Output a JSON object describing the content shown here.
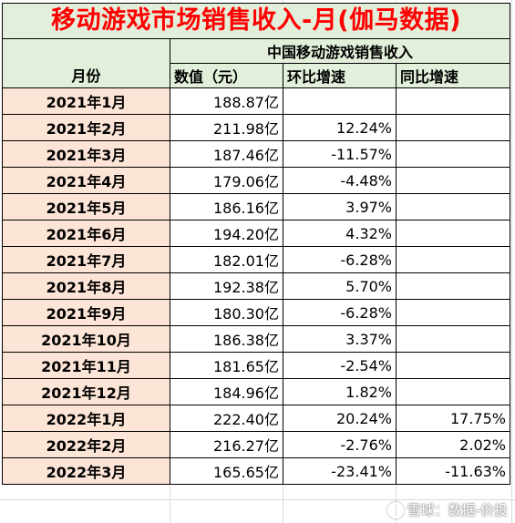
{
  "title": "移动游戏市场销售收入-月(伽马数据)",
  "headers": {
    "month": "月份",
    "group": "中国移动游戏销售收入",
    "value": "数值（元）",
    "mom": "环比增速",
    "yoy": "同比增速"
  },
  "rows": [
    {
      "month": "2021年1月",
      "value": "188.87亿",
      "mom": "",
      "yoy": ""
    },
    {
      "month": "2021年2月",
      "value": "211.98亿",
      "mom": "12.24%",
      "yoy": ""
    },
    {
      "month": "2021年3月",
      "value": "187.46亿",
      "mom": "-11.57%",
      "yoy": ""
    },
    {
      "month": "2021年4月",
      "value": "179.06亿",
      "mom": "-4.48%",
      "yoy": ""
    },
    {
      "month": "2021年5月",
      "value": "186.16亿",
      "mom": "3.97%",
      "yoy": ""
    },
    {
      "month": "2021年6月",
      "value": "194.20亿",
      "mom": "4.32%",
      "yoy": ""
    },
    {
      "month": "2021年7月",
      "value": "182.01亿",
      "mom": "-6.28%",
      "yoy": ""
    },
    {
      "month": "2021年8月",
      "value": "192.38亿",
      "mom": "5.70%",
      "yoy": ""
    },
    {
      "month": "2021年9月",
      "value": "180.30亿",
      "mom": "-6.28%",
      "yoy": ""
    },
    {
      "month": "2021年10月",
      "value": "186.38亿",
      "mom": "3.37%",
      "yoy": ""
    },
    {
      "month": "2021年11月",
      "value": "181.65亿",
      "mom": "-2.54%",
      "yoy": ""
    },
    {
      "month": "2021年12月",
      "value": "184.96亿",
      "mom": "1.82%",
      "yoy": ""
    },
    {
      "month": "2022年1月",
      "value": "222.40亿",
      "mom": "20.24%",
      "yoy": "17.75%"
    },
    {
      "month": "2022年2月",
      "value": "216.27亿",
      "mom": "-2.76%",
      "yoy": "2.02%"
    },
    {
      "month": "2022年3月",
      "value": "165.65亿",
      "mom": "-23.41%",
      "yoy": "-11.63%"
    }
  ],
  "watermark": "雪球：数据-价投",
  "watermark_icon": "snowball-logo-icon"
}
